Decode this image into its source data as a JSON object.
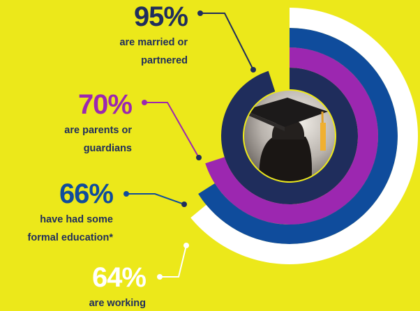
{
  "chart_data": {
    "type": "radial-bar",
    "values": [
      95,
      70,
      66,
      64
    ],
    "value_labels": [
      "95%",
      "70%",
      "66%",
      "64%"
    ],
    "categories": [
      "are married or partnered",
      "are parents or guardians",
      "have had some formal education*",
      "are working"
    ],
    "colors": [
      "#1f2d5c",
      "#9c27b0",
      "#0f4c9c",
      "#ffffff"
    ]
  }
}
